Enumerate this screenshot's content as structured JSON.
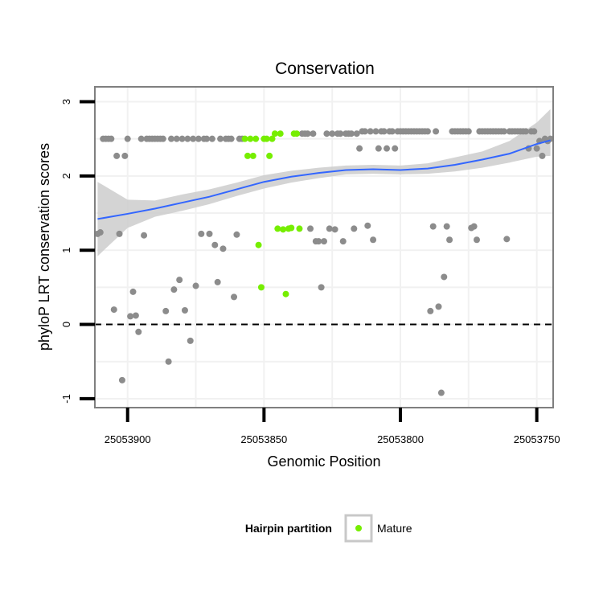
{
  "chart_data": {
    "type": "scatter",
    "title": "Conservation",
    "xlabel": "Genomic Position",
    "ylabel": "phyloP LRT conservation scores",
    "x_reversed": true,
    "xlim": [
      25053912,
      25053744
    ],
    "ylim": [
      -1.12,
      3.2
    ],
    "x_ticks": [
      25053900,
      25053850,
      25053800,
      25053750
    ],
    "y_ticks": [
      -1,
      0,
      1,
      2,
      3
    ],
    "grid": true,
    "reference_line": {
      "y": 0,
      "style": "dashed"
    },
    "colors": {
      "background_points": "#8c8c8c",
      "mature": "#76ee00",
      "smooth": "#3366ff",
      "ribbon": "#cccccc",
      "grid": "#f1f1f1",
      "panel_border": "#7f7f7f"
    },
    "legend": {
      "title": "Hairpin partition",
      "position": "bottom",
      "entries": [
        {
          "label": "Mature",
          "color": "#76ee00"
        }
      ]
    },
    "series": [
      {
        "name": "",
        "color": "#8c8c8c",
        "points": [
          [
            25053911,
            1.22
          ],
          [
            25053910,
            1.24
          ],
          [
            25053909,
            2.5
          ],
          [
            25053908,
            2.5
          ],
          [
            25053907,
            2.5
          ],
          [
            25053906,
            2.5
          ],
          [
            25053905,
            0.2
          ],
          [
            25053904,
            2.27
          ],
          [
            25053903,
            1.22
          ],
          [
            25053902,
            -0.75
          ],
          [
            25053901,
            2.27
          ],
          [
            25053900,
            2.5
          ],
          [
            25053899,
            0.11
          ],
          [
            25053898,
            0.44
          ],
          [
            25053897,
            0.12
          ],
          [
            25053896,
            -0.1
          ],
          [
            25053895,
            2.5
          ],
          [
            25053894,
            1.2
          ],
          [
            25053893,
            2.5
          ],
          [
            25053892,
            2.5
          ],
          [
            25053891,
            2.5
          ],
          [
            25053890,
            2.5
          ],
          [
            25053889,
            2.5
          ],
          [
            25053888,
            2.5
          ],
          [
            25053887,
            2.5
          ],
          [
            25053886,
            0.18
          ],
          [
            25053885,
            -0.5
          ],
          [
            25053884,
            2.5
          ],
          [
            25053883,
            0.47
          ],
          [
            25053882,
            2.5
          ],
          [
            25053881,
            0.6
          ],
          [
            25053880,
            2.5
          ],
          [
            25053879,
            0.19
          ],
          [
            25053878,
            2.5
          ],
          [
            25053877,
            -0.22
          ],
          [
            25053876,
            2.5
          ],
          [
            25053875,
            0.52
          ],
          [
            25053874,
            2.5
          ],
          [
            25053873,
            1.22
          ],
          [
            25053872,
            2.5
          ],
          [
            25053871,
            2.5
          ],
          [
            25053870,
            1.22
          ],
          [
            25053869,
            2.5
          ],
          [
            25053868,
            1.07
          ],
          [
            25053867,
            0.57
          ],
          [
            25053866,
            2.5
          ],
          [
            25053865,
            1.02
          ],
          [
            25053864,
            2.5
          ],
          [
            25053863,
            2.5
          ],
          [
            25053862,
            2.5
          ],
          [
            25053861,
            0.37
          ],
          [
            25053860,
            1.21
          ],
          [
            25053859,
            2.5
          ],
          [
            25053858,
            2.5
          ],
          [
            25053836,
            2.57
          ],
          [
            25053835,
            2.57
          ],
          [
            25053834,
            2.57
          ],
          [
            25053833,
            1.29
          ],
          [
            25053832,
            2.57
          ],
          [
            25053831,
            1.12
          ],
          [
            25053830,
            1.12
          ],
          [
            25053829,
            0.5
          ],
          [
            25053828,
            1.12
          ],
          [
            25053827,
            2.57
          ],
          [
            25053826,
            1.29
          ],
          [
            25053825,
            2.57
          ],
          [
            25053824,
            1.28
          ],
          [
            25053823,
            2.57
          ],
          [
            25053822,
            2.57
          ],
          [
            25053821,
            1.12
          ],
          [
            25053820,
            2.57
          ],
          [
            25053819,
            2.57
          ],
          [
            25053818,
            2.57
          ],
          [
            25053817,
            1.29
          ],
          [
            25053816,
            2.57
          ],
          [
            25053815,
            2.37
          ],
          [
            25053814,
            2.6
          ],
          [
            25053813,
            2.6
          ],
          [
            25053812,
            1.33
          ],
          [
            25053811,
            2.6
          ],
          [
            25053810,
            1.14
          ],
          [
            25053809,
            2.6
          ],
          [
            25053808,
            2.37
          ],
          [
            25053807,
            2.6
          ],
          [
            25053806,
            2.6
          ],
          [
            25053805,
            2.37
          ],
          [
            25053804,
            2.6
          ],
          [
            25053803,
            2.6
          ],
          [
            25053802,
            2.37
          ],
          [
            25053801,
            2.6
          ],
          [
            25053800,
            2.6
          ],
          [
            25053799,
            2.6
          ],
          [
            25053798,
            2.6
          ],
          [
            25053797,
            2.6
          ],
          [
            25053796,
            2.6
          ],
          [
            25053795,
            2.6
          ],
          [
            25053794,
            2.6
          ],
          [
            25053793,
            2.6
          ],
          [
            25053792,
            2.6
          ],
          [
            25053791,
            2.6
          ],
          [
            25053790,
            2.6
          ],
          [
            25053789,
            0.18
          ],
          [
            25053788,
            1.32
          ],
          [
            25053787,
            2.6
          ],
          [
            25053786,
            0.24
          ],
          [
            25053785,
            -0.92
          ],
          [
            25053784,
            0.64
          ],
          [
            25053783,
            1.32
          ],
          [
            25053782,
            1.14
          ],
          [
            25053781,
            2.6
          ],
          [
            25053780,
            2.6
          ],
          [
            25053779,
            2.6
          ],
          [
            25053778,
            2.6
          ],
          [
            25053777,
            2.6
          ],
          [
            25053776,
            2.6
          ],
          [
            25053775,
            2.6
          ],
          [
            25053774,
            1.3
          ],
          [
            25053773,
            1.32
          ],
          [
            25053772,
            1.14
          ],
          [
            25053771,
            2.6
          ],
          [
            25053770,
            2.6
          ],
          [
            25053769,
            2.6
          ],
          [
            25053768,
            2.6
          ],
          [
            25053767,
            2.6
          ],
          [
            25053766,
            2.6
          ],
          [
            25053765,
            2.6
          ],
          [
            25053764,
            2.6
          ],
          [
            25053763,
            2.6
          ],
          [
            25053762,
            2.6
          ],
          [
            25053761,
            1.15
          ],
          [
            25053760,
            2.6
          ],
          [
            25053759,
            2.6
          ],
          [
            25053758,
            2.6
          ],
          [
            25053757,
            2.6
          ],
          [
            25053756,
            2.6
          ],
          [
            25053755,
            2.6
          ],
          [
            25053754,
            2.6
          ],
          [
            25053753,
            2.37
          ],
          [
            25053752,
            2.6
          ],
          [
            25053751,
            2.6
          ],
          [
            25053750,
            2.37
          ],
          [
            25053749,
            2.47
          ],
          [
            25053748,
            2.27
          ],
          [
            25053747,
            2.5
          ],
          [
            25053746,
            2.47
          ],
          [
            25053745,
            2.5
          ]
        ]
      },
      {
        "name": "Mature",
        "color": "#76ee00",
        "points": [
          [
            25053857,
            2.5
          ],
          [
            25053856,
            2.27
          ],
          [
            25053855,
            2.5
          ],
          [
            25053854,
            2.27
          ],
          [
            25053853,
            2.5
          ],
          [
            25053852,
            1.07
          ],
          [
            25053851,
            0.5
          ],
          [
            25053850,
            2.5
          ],
          [
            25053849,
            2.5
          ],
          [
            25053848,
            2.27
          ],
          [
            25053847,
            2.5
          ],
          [
            25053846,
            2.57
          ],
          [
            25053845,
            1.29
          ],
          [
            25053844,
            2.57
          ],
          [
            25053843,
            1.28
          ],
          [
            25053842,
            0.41
          ],
          [
            25053841,
            1.29
          ],
          [
            25053840,
            1.3
          ],
          [
            25053839,
            2.57
          ],
          [
            25053838,
            2.57
          ],
          [
            25053837,
            1.29
          ]
        ]
      }
    ],
    "smooth": {
      "name": "",
      "color": "#3366ff",
      "x": [
        25053911,
        25053900,
        25053890,
        25053880,
        25053870,
        25053860,
        25053850,
        25053840,
        25053830,
        25053820,
        25053810,
        25053800,
        25053790,
        25053780,
        25053770,
        25053760,
        25053750,
        25053745
      ],
      "y": [
        1.42,
        1.49,
        1.56,
        1.64,
        1.72,
        1.82,
        1.92,
        1.99,
        2.04,
        2.08,
        2.09,
        2.08,
        2.1,
        2.15,
        2.22,
        2.3,
        2.43,
        2.48
      ],
      "lower": [
        0.92,
        1.3,
        1.45,
        1.53,
        1.62,
        1.73,
        1.83,
        1.91,
        1.97,
        2.02,
        2.03,
        2.02,
        2.03,
        2.06,
        2.11,
        2.18,
        2.26,
        2.27
      ],
      "upper": [
        1.92,
        1.68,
        1.67,
        1.75,
        1.82,
        1.91,
        2.01,
        2.07,
        2.11,
        2.14,
        2.15,
        2.14,
        2.17,
        2.25,
        2.33,
        2.47,
        2.72,
        2.9
      ]
    }
  }
}
